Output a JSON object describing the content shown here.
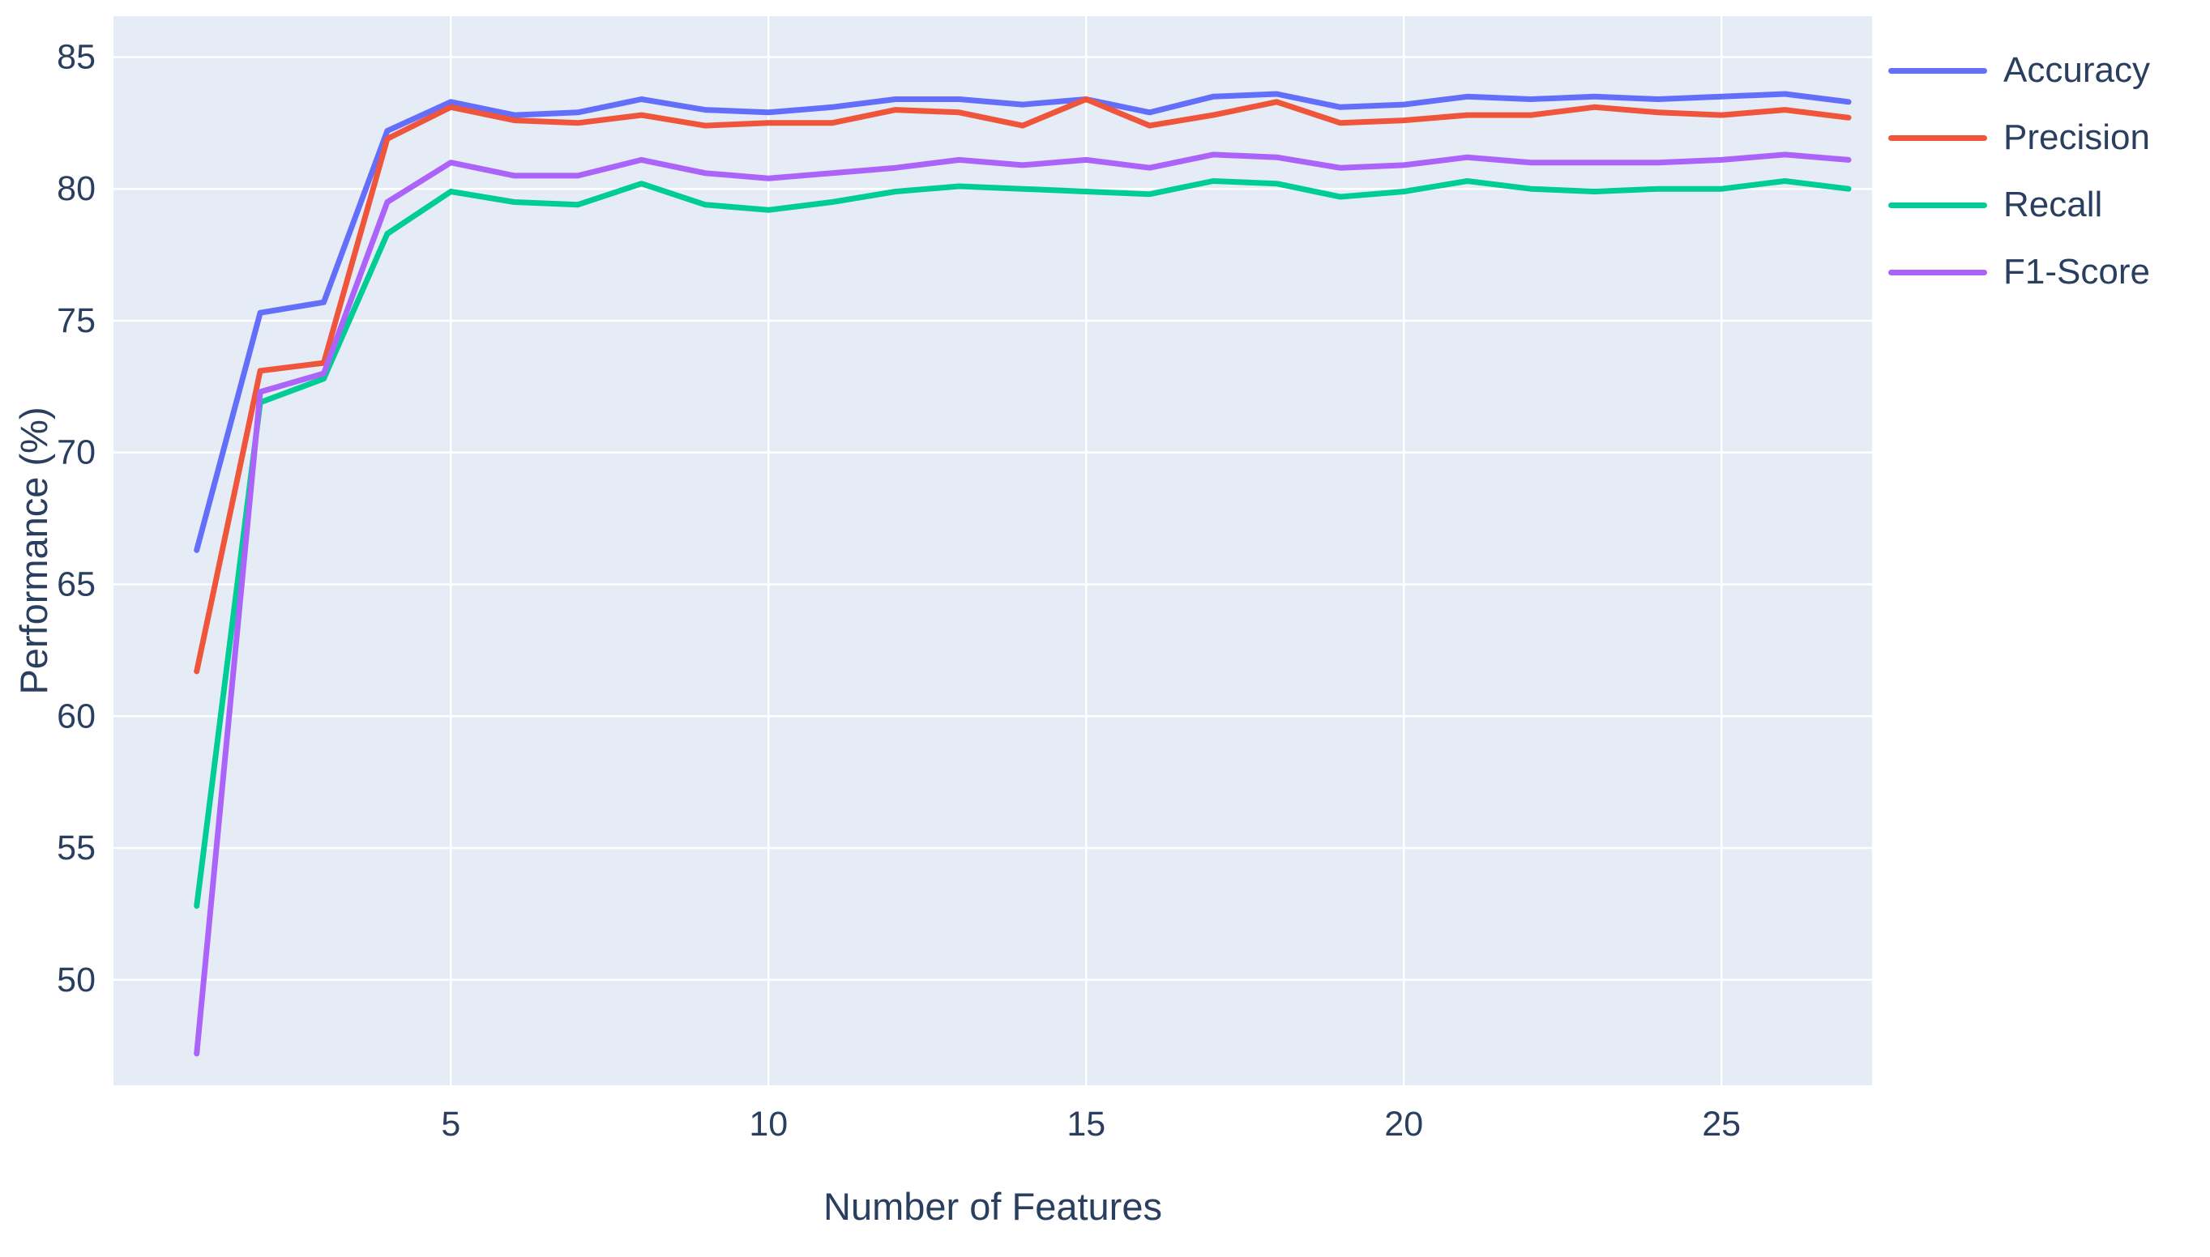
{
  "figure": {
    "background_color": "#ffffff",
    "plot_background_color": "#E5ECF6",
    "grid_color": "#ffffff",
    "text_color": "#2a3f5f"
  },
  "chart_data": {
    "type": "line",
    "title": "",
    "xlabel": "Number of Features",
    "ylabel": "Performance (%)",
    "x": [
      1,
      2,
      3,
      4,
      5,
      6,
      7,
      8,
      9,
      10,
      11,
      12,
      13,
      14,
      15,
      16,
      17,
      18,
      19,
      20,
      21,
      22,
      23,
      24,
      25,
      26,
      27
    ],
    "x_ticks": [
      5,
      10,
      15,
      20,
      25
    ],
    "y_ticks": [
      50,
      55,
      60,
      65,
      70,
      75,
      80,
      85
    ],
    "x_range": [
      -0.31,
      27.37
    ],
    "y_range": [
      46.0,
      86.55
    ],
    "grid": true,
    "legend_position": "top-right-outside",
    "series": [
      {
        "name": "Accuracy",
        "color": "#636EFA",
        "values": [
          66.3,
          75.3,
          75.7,
          82.2,
          83.3,
          82.8,
          82.9,
          83.4,
          83.0,
          82.9,
          83.1,
          83.4,
          83.4,
          83.2,
          83.4,
          82.9,
          83.5,
          83.6,
          83.1,
          83.2,
          83.5,
          83.4,
          83.5,
          83.4,
          83.5,
          83.6,
          83.3
        ]
      },
      {
        "name": "Precision",
        "color": "#EF553B",
        "values": [
          61.7,
          73.1,
          73.4,
          81.9,
          83.1,
          82.6,
          82.5,
          82.8,
          82.4,
          82.5,
          82.5,
          83.0,
          82.9,
          82.4,
          83.4,
          82.4,
          82.8,
          83.3,
          82.5,
          82.6,
          82.8,
          82.8,
          83.1,
          82.9,
          82.8,
          83.0,
          82.7
        ]
      },
      {
        "name": "Recall",
        "color": "#00CC96",
        "values": [
          52.8,
          71.9,
          72.8,
          78.3,
          79.9,
          79.5,
          79.4,
          80.2,
          79.4,
          79.2,
          79.5,
          79.9,
          80.1,
          80.0,
          79.9,
          79.8,
          80.3,
          80.2,
          79.7,
          79.9,
          80.3,
          80.0,
          79.9,
          80.0,
          80.0,
          80.3,
          80.0
        ]
      },
      {
        "name": "F1-Score",
        "color": "#AB63FA",
        "values": [
          47.2,
          72.3,
          73.0,
          79.5,
          81.0,
          80.5,
          80.5,
          81.1,
          80.6,
          80.4,
          80.6,
          80.8,
          81.1,
          80.9,
          81.1,
          80.8,
          81.3,
          81.2,
          80.8,
          80.9,
          81.2,
          81.0,
          81.0,
          81.0,
          81.1,
          81.3,
          81.1
        ]
      }
    ]
  }
}
